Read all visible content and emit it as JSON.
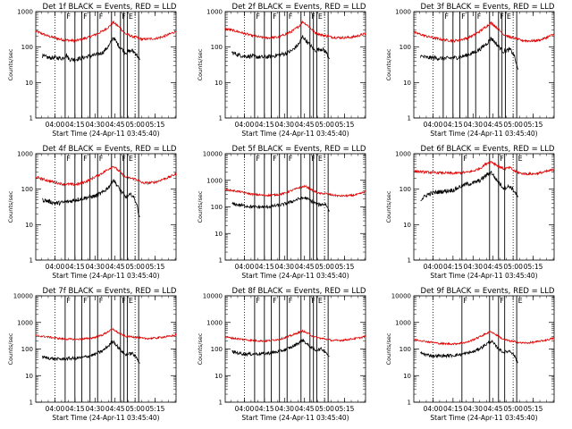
{
  "figure": {
    "xlabel": "Start Time (24-Apr-11 03:45:40)",
    "ylabel": "Counts/sec",
    "xticks": [
      "04:00",
      "04:15",
      "04:30",
      "04:45",
      "05:00",
      "05:15"
    ],
    "xtick_values": [
      14.33,
      29.33,
      44.33,
      59.33,
      74.33,
      89.33
    ],
    "x_range_minutes": [
      0,
      105
    ],
    "colors": {
      "events": "#000000",
      "lld": "#e00000"
    },
    "markers": {
      "dotted_x": [
        14.33,
        74.33
      ],
      "solid_groups": [
        {
          "x": [
            22,
            29.3,
            34.5,
            40.6,
            46.3,
            56.7,
            63.4,
            66,
            68.5,
            77
          ],
          "labels": [
            "F",
            "F",
            "F",
            "F",
            "E"
          ]
        }
      ]
    }
  },
  "chart_data": [
    {
      "type": "line",
      "title": "Det 1f BLACK = Events, RED = LLD",
      "yscale": "log",
      "ylim": [
        1,
        1000
      ],
      "yticks": [
        1,
        10,
        100,
        1000
      ],
      "series": [
        {
          "key": "lld",
          "x": [
            0,
            10,
            20,
            30,
            35,
            40,
            45,
            50,
            55,
            58,
            62,
            67,
            72,
            75,
            80,
            85,
            90,
            95,
            100,
            105
          ],
          "values": [
            280,
            200,
            160,
            150,
            170,
            190,
            230,
            280,
            380,
            500,
            380,
            240,
            200,
            190,
            165,
            170,
            175,
            195,
            230,
            280
          ]
        },
        {
          "key": "events",
          "x": [
            5,
            10,
            15,
            20,
            23,
            25,
            30,
            35,
            40,
            45,
            50,
            55,
            58,
            62,
            67,
            72,
            75,
            77,
            78
          ],
          "values": [
            55,
            50,
            50,
            48,
            60,
            45,
            45,
            50,
            55,
            60,
            70,
            110,
            190,
            110,
            70,
            80,
            65,
            50,
            40
          ]
        }
      ],
      "markers": {
        "dotted_x": [
          14.33,
          74.33
        ],
        "solid_x": [
          22,
          29.3,
          34.5,
          40.6,
          46.3,
          56.7,
          63.4,
          66,
          68.5,
          77
        ],
        "labels": [
          "F",
          "F",
          "F",
          "F",
          "E"
        ]
      }
    },
    {
      "type": "line",
      "title": "Det 2f BLACK = Events, RED = LLD",
      "yscale": "log",
      "ylim": [
        1,
        1000
      ],
      "yticks": [
        1,
        10,
        100,
        1000
      ],
      "series": [
        {
          "key": "lld",
          "x": [
            0,
            10,
            20,
            30,
            35,
            40,
            45,
            50,
            55,
            58,
            62,
            67,
            72,
            75,
            80,
            85,
            90,
            95,
            100,
            105
          ],
          "values": [
            330,
            270,
            210,
            180,
            185,
            190,
            230,
            280,
            380,
            520,
            400,
            260,
            220,
            210,
            190,
            185,
            185,
            190,
            210,
            240
          ]
        },
        {
          "key": "events",
          "x": [
            5,
            10,
            15,
            20,
            25,
            30,
            35,
            40,
            45,
            50,
            55,
            58,
            62,
            67,
            72,
            75,
            78
          ],
          "values": [
            70,
            60,
            55,
            55,
            52,
            52,
            55,
            60,
            65,
            80,
            120,
            200,
            130,
            80,
            90,
            75,
            50
          ]
        }
      ],
      "markers": {
        "dotted_x": [
          14.33,
          74.33
        ],
        "solid_x": [
          22,
          29.3,
          34.5,
          40.6,
          46.3,
          56.7,
          63.4,
          66,
          68.5,
          77
        ],
        "labels": [
          "F",
          "F",
          "F",
          "F",
          "E"
        ]
      }
    },
    {
      "type": "line",
      "title": "Det 3f BLACK = Events, RED = LLD",
      "yscale": "log",
      "ylim": [
        1,
        1000
      ],
      "yticks": [
        1,
        10,
        100,
        1000
      ],
      "series": [
        {
          "key": "lld",
          "x": [
            0,
            10,
            20,
            30,
            35,
            40,
            45,
            50,
            55,
            58,
            62,
            67,
            72,
            75,
            80,
            85,
            90,
            95,
            100,
            105
          ],
          "values": [
            260,
            200,
            165,
            150,
            160,
            180,
            220,
            290,
            400,
            480,
            360,
            230,
            190,
            180,
            155,
            150,
            150,
            160,
            190,
            230
          ]
        },
        {
          "key": "events",
          "x": [
            5,
            10,
            15,
            20,
            25,
            30,
            35,
            40,
            45,
            50,
            55,
            58,
            62,
            67,
            72,
            75,
            78
          ],
          "values": [
            55,
            50,
            50,
            48,
            48,
            50,
            52,
            60,
            70,
            90,
            130,
            180,
            120,
            75,
            85,
            60,
            22
          ]
        }
      ],
      "markers": {
        "dotted_x": [
          14.33,
          74.33
        ],
        "solid_x": [
          22,
          29.3,
          34.5,
          40.6,
          46.3,
          56.7,
          63.4,
          66,
          68.5,
          77
        ],
        "labels": [
          "F",
          "F",
          "F",
          "F",
          "E"
        ]
      }
    },
    {
      "type": "line",
      "title": "Det 4f BLACK = Events, RED = LLD",
      "yscale": "log",
      "ylim": [
        1,
        1000
      ],
      "yticks": [
        1,
        10,
        100,
        1000
      ],
      "series": [
        {
          "key": "lld",
          "x": [
            0,
            10,
            20,
            30,
            35,
            40,
            45,
            50,
            55,
            58,
            62,
            67,
            72,
            75,
            80,
            85,
            90,
            95,
            100,
            105
          ],
          "values": [
            220,
            170,
            140,
            135,
            150,
            180,
            230,
            290,
            380,
            450,
            330,
            220,
            200,
            190,
            150,
            150,
            160,
            190,
            220,
            270
          ]
        },
        {
          "key": "events",
          "x": [
            5,
            10,
            15,
            20,
            25,
            30,
            35,
            40,
            45,
            50,
            55,
            58,
            62,
            67,
            72,
            75,
            78
          ],
          "values": [
            50,
            45,
            40,
            42,
            45,
            50,
            55,
            60,
            65,
            80,
            120,
            190,
            110,
            60,
            70,
            45,
            15
          ]
        }
      ],
      "markers": {
        "dotted_x": [
          14.33,
          74.33
        ],
        "solid_x": [
          22,
          29.3,
          34.5,
          40.6,
          46.3,
          56.7,
          63.4,
          66,
          68.5,
          77
        ],
        "labels": [
          "F",
          "F",
          "F",
          "F",
          "E"
        ]
      }
    },
    {
      "type": "line",
      "title": "Det 5f BLACK = Events, RED = LLD",
      "yscale": "log",
      "ylim": [
        1,
        10000
      ],
      "yticks": [
        1,
        10,
        100,
        1000,
        10000
      ],
      "series": [
        {
          "key": "lld",
          "x": [
            0,
            10,
            20,
            30,
            40,
            45,
            50,
            55,
            60,
            65,
            70,
            75,
            80,
            85,
            90,
            95,
            100,
            105
          ],
          "values": [
            450,
            380,
            300,
            270,
            290,
            330,
            420,
            520,
            600,
            430,
            320,
            320,
            280,
            260,
            260,
            270,
            300,
            380
          ]
        },
        {
          "key": "events",
          "x": [
            5,
            10,
            15,
            20,
            25,
            30,
            35,
            40,
            45,
            50,
            55,
            60,
            65,
            70,
            75,
            78
          ],
          "values": [
            130,
            120,
            110,
            100,
            98,
            100,
            105,
            115,
            130,
            160,
            200,
            220,
            160,
            120,
            130,
            70
          ]
        }
      ],
      "markers": {
        "dotted_x": [
          14.33,
          74.33
        ],
        "solid_x": [
          22,
          29.3,
          34.5,
          40.6,
          46.3,
          56.7,
          63.4,
          66,
          68.5,
          77
        ],
        "labels": [
          "F",
          "F",
          "F",
          "F",
          "E"
        ]
      }
    },
    {
      "type": "line",
      "title": "Det 6f BLACK = Events, RED = LLD",
      "yscale": "log",
      "ylim": [
        1,
        1000
      ],
      "yticks": [
        1,
        10,
        100,
        1000
      ],
      "series": [
        {
          "key": "lld",
          "x": [
            0,
            10,
            20,
            30,
            40,
            45,
            50,
            55,
            58,
            62,
            67,
            72,
            75,
            80,
            85,
            90,
            95,
            100,
            105
          ],
          "values": [
            320,
            300,
            290,
            280,
            300,
            330,
            400,
            550,
            600,
            480,
            380,
            400,
            330,
            280,
            270,
            270,
            290,
            320,
            360
          ]
        },
        {
          "key": "events",
          "x": [
            5,
            10,
            15,
            20,
            25,
            30,
            35,
            40,
            45,
            50,
            55,
            58,
            62,
            67,
            72,
            75,
            78
          ],
          "values": [
            50,
            70,
            80,
            85,
            90,
            95,
            120,
            140,
            150,
            180,
            260,
            300,
            180,
            110,
            120,
            90,
            60
          ]
        }
      ],
      "markers": {
        "dotted_x": [
          14.33,
          74.33
        ],
        "solid_x": [
          36,
          56.7,
          63.4,
          68,
          77
        ],
        "labels": [
          "F",
          "F",
          "E"
        ]
      }
    },
    {
      "type": "line",
      "title": "Det 7f BLACK = Events, RED = LLD",
      "yscale": "log",
      "ylim": [
        1,
        10000
      ],
      "yticks": [
        1,
        10,
        100,
        1000,
        10000
      ],
      "series": [
        {
          "key": "lld",
          "x": [
            0,
            10,
            20,
            30,
            40,
            45,
            50,
            55,
            58,
            62,
            67,
            72,
            75,
            80,
            85,
            90,
            95,
            100,
            105
          ],
          "values": [
            320,
            280,
            240,
            230,
            250,
            280,
            340,
            480,
            550,
            400,
            300,
            290,
            280,
            250,
            250,
            260,
            280,
            300,
            340
          ]
        },
        {
          "key": "events",
          "x": [
            5,
            10,
            15,
            20,
            25,
            30,
            35,
            40,
            45,
            50,
            55,
            58,
            62,
            67,
            72,
            75,
            78
          ],
          "values": [
            50,
            45,
            42,
            42,
            44,
            45,
            48,
            55,
            65,
            85,
            140,
            200,
            110,
            60,
            70,
            50,
            30
          ]
        }
      ],
      "markers": {
        "dotted_x": [
          14.33,
          74.33
        ],
        "solid_x": [
          22,
          29.3,
          34.5,
          40.6,
          46.3,
          56.7,
          63.4,
          66,
          68.5,
          77
        ],
        "labels": [
          "F",
          "F",
          "F",
          "F",
          "E"
        ]
      }
    },
    {
      "type": "line",
      "title": "Det 8f BLACK = Events, RED = LLD",
      "yscale": "log",
      "ylim": [
        1,
        10000
      ],
      "yticks": [
        1,
        10,
        100,
        1000,
        10000
      ],
      "series": [
        {
          "key": "lld",
          "x": [
            0,
            10,
            20,
            30,
            40,
            45,
            50,
            55,
            58,
            62,
            67,
            72,
            75,
            80,
            85,
            90,
            95,
            100,
            105
          ],
          "values": [
            280,
            240,
            210,
            200,
            230,
            270,
            330,
            420,
            480,
            380,
            280,
            250,
            240,
            210,
            210,
            220,
            240,
            260,
            300
          ]
        },
        {
          "key": "events",
          "x": [
            5,
            10,
            15,
            20,
            25,
            30,
            35,
            40,
            45,
            50,
            55,
            58,
            62,
            67,
            72,
            75,
            78
          ],
          "values": [
            80,
            70,
            65,
            65,
            66,
            68,
            72,
            80,
            95,
            120,
            170,
            220,
            140,
            90,
            100,
            80,
            50
          ]
        }
      ],
      "markers": {
        "dotted_x": [
          14.33,
          74.33
        ],
        "solid_x": [
          22,
          29.3,
          34.5,
          40.6,
          46.3,
          56.7,
          63.4,
          66,
          68.5,
          77
        ],
        "labels": [
          "F",
          "F",
          "F",
          "F",
          "E"
        ]
      }
    },
    {
      "type": "line",
      "title": "Det 9f BLACK = Events, RED = LLD",
      "yscale": "log",
      "ylim": [
        1,
        10000
      ],
      "yticks": [
        1,
        10,
        100,
        1000,
        10000
      ],
      "series": [
        {
          "key": "lld",
          "x": [
            0,
            10,
            20,
            30,
            40,
            45,
            50,
            55,
            58,
            62,
            67,
            72,
            75,
            80,
            85,
            90,
            95,
            100,
            105
          ],
          "values": [
            230,
            190,
            160,
            155,
            180,
            230,
            300,
            400,
            450,
            330,
            230,
            200,
            190,
            170,
            170,
            180,
            200,
            220,
            260
          ]
        },
        {
          "key": "events",
          "x": [
            5,
            10,
            15,
            20,
            25,
            30,
            35,
            40,
            45,
            50,
            55,
            58,
            62,
            67,
            72,
            75,
            78
          ],
          "values": [
            70,
            60,
            55,
            55,
            56,
            58,
            62,
            70,
            80,
            110,
            160,
            200,
            120,
            75,
            85,
            60,
            30
          ]
        }
      ],
      "markers": {
        "dotted_x": [
          14.33,
          74.33
        ],
        "solid_x": [
          36,
          56.7,
          63.4,
          68,
          77
        ],
        "labels": [
          "F",
          "F",
          "E"
        ]
      }
    }
  ]
}
